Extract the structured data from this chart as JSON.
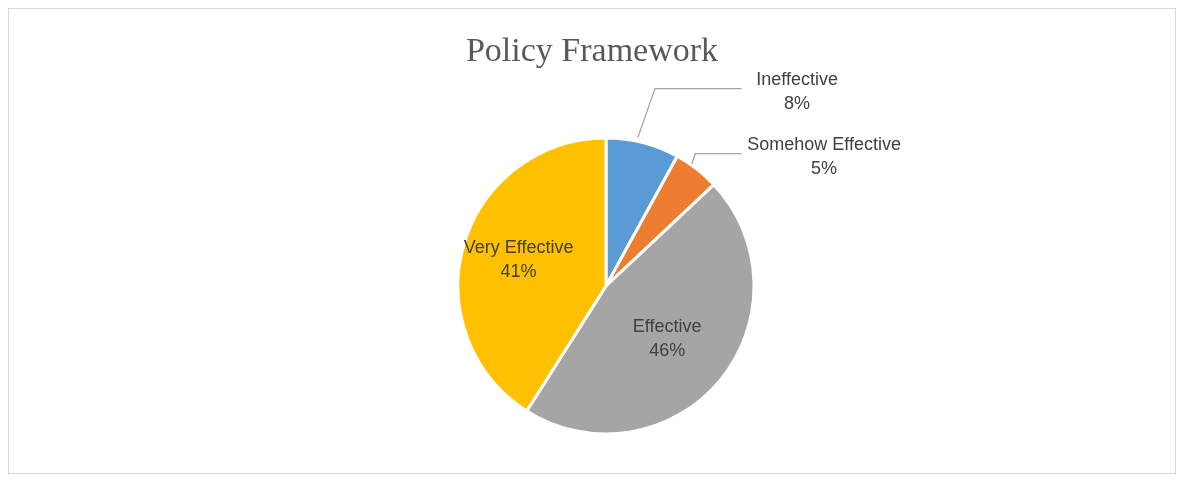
{
  "chart_data": {
    "type": "pie",
    "title": "Policy Framework",
    "categories": [
      "Ineffective",
      "Somehow Effective",
      "Effective",
      "Very Effective"
    ],
    "values": [
      8,
      5,
      46,
      41
    ],
    "value_labels": [
      "8%",
      "5%",
      "46%",
      "41%"
    ],
    "colors": [
      "#5b9bd5",
      "#ed7d31",
      "#a5a5a5",
      "#ffc000"
    ],
    "legend": false
  }
}
